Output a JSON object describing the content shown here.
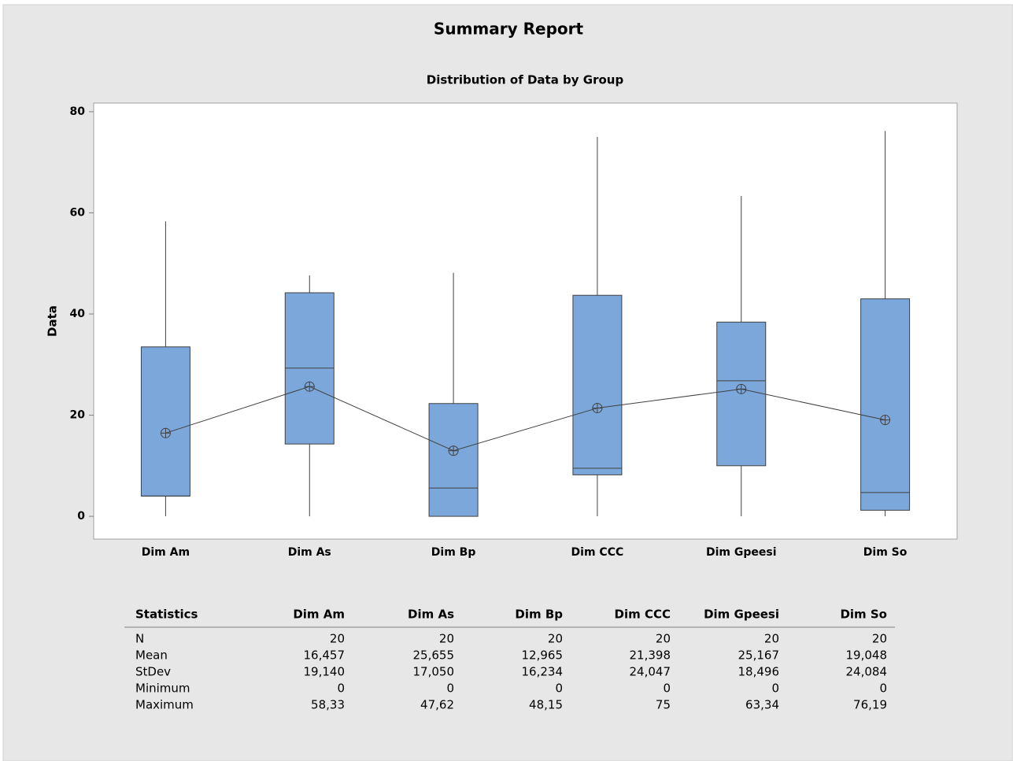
{
  "chart_data": {
    "type": "box",
    "title": "Summary Report",
    "subtitle": "Distribution of Data by Group",
    "ylabel": "Data",
    "categories": [
      "Dim Am",
      "Dim As",
      "Dim Bp",
      "Dim CCC",
      "Dim Gpeesi",
      "Dim So"
    ],
    "whisker_low": [
      0,
      0,
      0,
      0,
      0,
      0
    ],
    "q1": [
      4.0,
      14.3,
      0,
      8.2,
      10.0,
      1.2
    ],
    "median": [
      4.0,
      29.3,
      5.6,
      9.5,
      26.8,
      4.7
    ],
    "q3": [
      33.5,
      44.2,
      22.3,
      43.7,
      38.4,
      43.0
    ],
    "whisker_high": [
      58.33,
      47.62,
      48.15,
      75,
      63.34,
      76.19
    ],
    "mean": [
      16.457,
      25.655,
      12.965,
      21.398,
      25.167,
      19.048
    ],
    "box_color": "#7ba7db",
    "line_color": "#404040",
    "ylim": [
      -4.5,
      81.7
    ],
    "yticks": [
      0,
      20,
      40,
      60,
      80
    ],
    "grid": false
  },
  "table": {
    "columns": [
      "Statistics",
      "Dim Am",
      "Dim As",
      "Dim Bp",
      "Dim CCC",
      "Dim Gpeesi",
      "Dim So"
    ],
    "rows": [
      [
        "N",
        "20",
        "20",
        "20",
        "20",
        "20",
        "20"
      ],
      [
        "Mean",
        "16,457",
        "25,655",
        "12,965",
        "21,398",
        "25,167",
        "19,048"
      ],
      [
        "StDev",
        "19,140",
        "17,050",
        "16,234",
        "24,047",
        "18,496",
        "24,084"
      ],
      [
        "Minimum",
        "0",
        "0",
        "0",
        "0",
        "0",
        "0"
      ],
      [
        "Maximum",
        "58,33",
        "47,62",
        "48,15",
        "75",
        "63,34",
        "76,19"
      ]
    ]
  }
}
